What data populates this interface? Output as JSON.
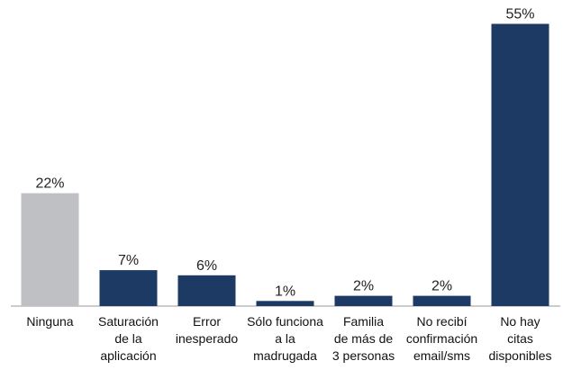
{
  "chart_data": {
    "type": "bar",
    "categories": [
      "Ninguna",
      "Saturación\nde la\naplicación",
      "Error\ninesperado",
      "Sólo funciona\na la\nmadrugada",
      "Familia\nde más de\n3 personas",
      "No recibí\nconfirmación\nemail/sms",
      "No hay\ncitas\ndisponibles"
    ],
    "values": [
      22,
      7,
      6,
      1,
      2,
      2,
      55
    ],
    "value_labels": [
      "22%",
      "7%",
      "6%",
      "1%",
      "2%",
      "2%",
      "55%"
    ],
    "colors": [
      "#bfc0c4",
      "#1c3a63",
      "#1c3a63",
      "#1c3a63",
      "#1c3a63",
      "#1c3a63",
      "#1c3a63"
    ]
  }
}
